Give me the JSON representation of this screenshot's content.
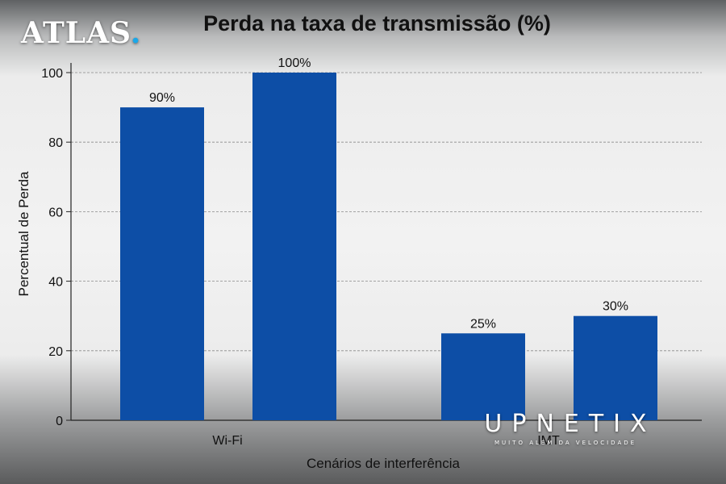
{
  "logo": {
    "text": "ATLAS",
    "dot": ".",
    "dot_color": "#1aa7e8"
  },
  "watermark": {
    "name": "UPNETIX",
    "tagline": "MUITO ALÉM DA VELOCIDADE"
  },
  "chart_data": {
    "type": "bar",
    "title": "Perda na taxa de transmissão (%)",
    "xlabel": "Cenários de interferência",
    "ylabel": "Percentual de Perda",
    "ylim": [
      0,
      100
    ],
    "yticks": [
      0,
      20,
      40,
      60,
      80,
      100
    ],
    "grid": true,
    "groups": [
      {
        "label": "Wi-Fi",
        "values": [
          90,
          100
        ],
        "labels": [
          "90%",
          "100%"
        ]
      },
      {
        "label": "IMT",
        "values": [
          25,
          30
        ],
        "labels": [
          "25%",
          "30%"
        ]
      }
    ],
    "bar_color": "#0d4ea6"
  }
}
